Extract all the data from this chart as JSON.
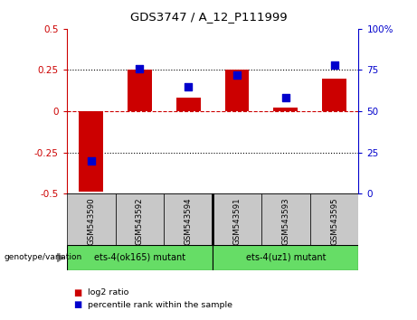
{
  "title": "GDS3747 / A_12_P111999",
  "samples": [
    "GSM543590",
    "GSM543592",
    "GSM543594",
    "GSM543591",
    "GSM543593",
    "GSM543595"
  ],
  "log2_ratios": [
    -0.49,
    0.255,
    0.08,
    0.255,
    0.02,
    0.2
  ],
  "percentile_ranks": [
    20,
    76,
    65,
    72,
    58,
    78
  ],
  "ylim_left": [
    -0.5,
    0.5
  ],
  "ylim_right": [
    0,
    100
  ],
  "groups": [
    {
      "label": "ets-4(ok165) mutant",
      "color": "#66DD66"
    },
    {
      "label": "ets-4(uz1) mutant",
      "color": "#66DD66"
    }
  ],
  "group_divider_at": 3,
  "bar_color": "#CC0000",
  "dot_color": "#0000CC",
  "hline_color": "#CC0000",
  "bg_sample_row": "#C8C8C8",
  "left_tick_color": "#CC0000",
  "right_tick_color": "#0000CC",
  "legend_red_label": "log2 ratio",
  "legend_blue_label": "percentile rank within the sample",
  "bar_width": 0.5,
  "dot_size": 40,
  "left_yticks": [
    -0.5,
    -0.25,
    0,
    0.25,
    0.5
  ],
  "left_yticklabels": [
    "-0.5",
    "-0.25",
    "0",
    "0.25",
    "0.5"
  ],
  "right_yticks": [
    0,
    25,
    50,
    75,
    100
  ],
  "right_yticklabels": [
    "0",
    "25",
    "50",
    "75",
    "100%"
  ]
}
